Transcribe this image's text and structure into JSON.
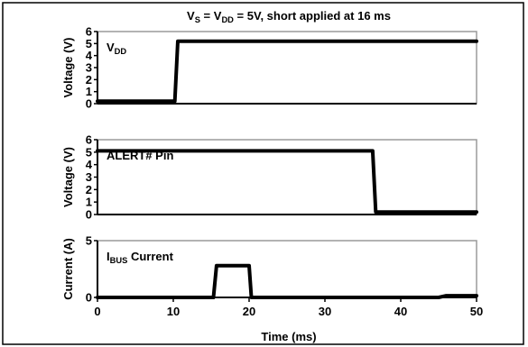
{
  "chart_data": {
    "type": "line",
    "title": "V_S = V_DD = 5V, short applied at 16 ms",
    "title_parts": [
      {
        "text": "V",
        "sub": false
      },
      {
        "text": "S",
        "sub": true
      },
      {
        "text": " = V",
        "sub": false
      },
      {
        "text": "DD",
        "sub": true
      },
      {
        "text": " = 5V, short applied at 16 ms",
        "sub": false
      }
    ],
    "xlabel": "Time (ms)",
    "xlim": [
      0,
      50
    ],
    "x_ticks": [
      0,
      10,
      20,
      30,
      40,
      50
    ],
    "grid": false,
    "panels": [
      {
        "ylabel": "Voltage (V)",
        "ylim": [
          0,
          6
        ],
        "y_ticks": [
          0,
          1,
          2,
          3,
          4,
          5,
          6
        ],
        "label_parts": [
          {
            "text": "V",
            "sub": false
          },
          {
            "text": "DD",
            "sub": true
          }
        ],
        "series": [
          {
            "x": [
              0,
              10.2,
              10.6,
              50
            ],
            "y": [
              0.2,
              0.2,
              5.2,
              5.2
            ]
          }
        ]
      },
      {
        "ylabel": "Voltage (V)",
        "ylim": [
          0,
          6
        ],
        "y_ticks": [
          0,
          1,
          2,
          3,
          4,
          5,
          6
        ],
        "label_parts": [
          {
            "text": "ALERT# Pin",
            "sub": false
          }
        ],
        "series": [
          {
            "x": [
              0,
              36.3,
              36.7,
              50
            ],
            "y": [
              5.1,
              5.1,
              0.2,
              0.2
            ]
          }
        ]
      },
      {
        "ylabel": "Current (A)",
        "ylim": [
          0,
          5
        ],
        "y_ticks": [
          0,
          5
        ],
        "label_parts": [
          {
            "text": "I",
            "sub": false
          },
          {
            "text": "BUS",
            "sub": true
          },
          {
            "text": " Current",
            "sub": false
          }
        ],
        "series": [
          {
            "x": [
              0,
              15.3,
              15.7,
              20.0,
              20.3,
              45.0,
              46.0,
              50
            ],
            "y": [
              0.0,
              0.0,
              2.8,
              2.8,
              0.0,
              0.0,
              0.15,
              0.15
            ]
          }
        ]
      }
    ]
  }
}
